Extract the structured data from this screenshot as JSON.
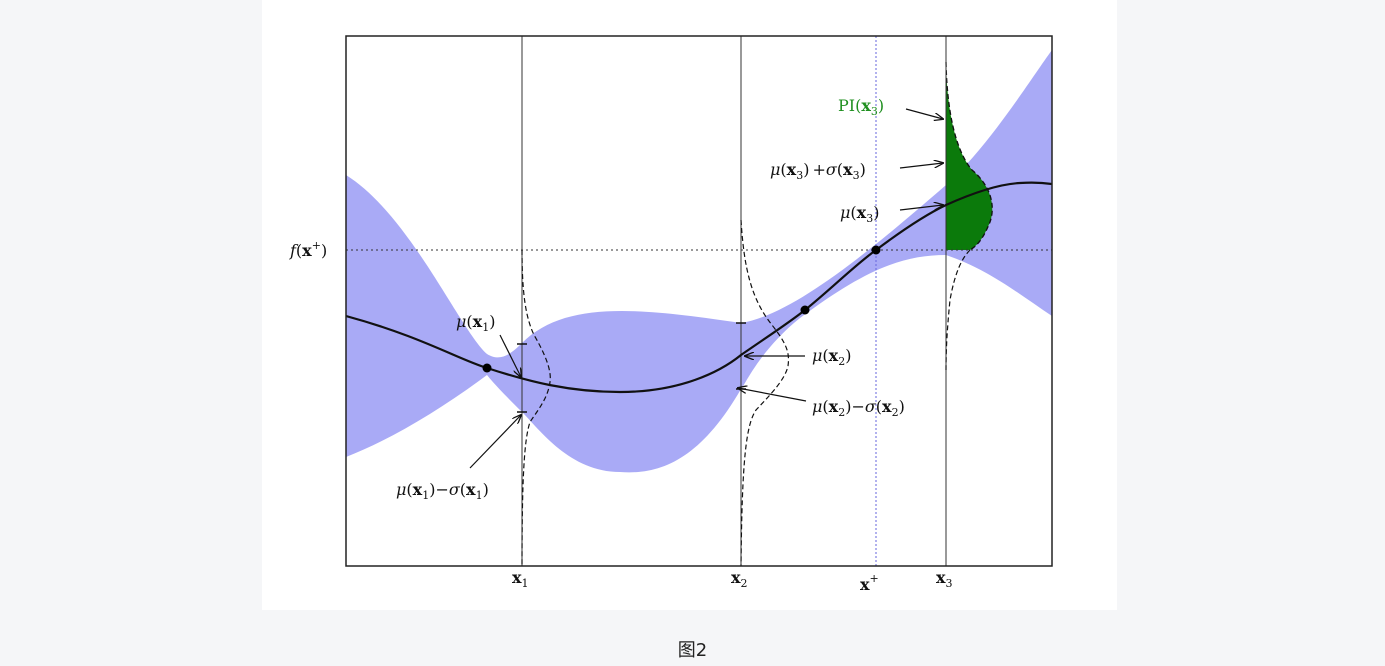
{
  "caption": "图2",
  "colors": {
    "band": "#a9aaf6",
    "pi_fill": "#0b7a0b",
    "pi_label": "#1f8f1f",
    "x_plus_line": "#6666dd"
  },
  "labels": {
    "f_x_plus": {
      "func": "f",
      "arg": "x",
      "sup": "+"
    },
    "mu_x1": {
      "mu": "μ",
      "x": "x",
      "sub": "1"
    },
    "mu_minus_sigma_x1": {
      "mu": "μ",
      "x": "x",
      "sub": "1",
      "op": "−",
      "sigma": "σ"
    },
    "mu_x2": {
      "mu": "μ",
      "x": "x",
      "sub": "2"
    },
    "mu_minus_sigma_x2": {
      "mu": "μ",
      "x": "x",
      "sub": "2",
      "op": "−",
      "sigma": "σ"
    },
    "mu_x3": {
      "mu": "μ",
      "x": "x",
      "sub": "3"
    },
    "mu_plus_sigma_x3": {
      "mu": "μ",
      "x": "x",
      "sub": "3",
      "op": "+",
      "sigma": "σ"
    },
    "pi_x3": {
      "pi": "PI",
      "x": "x",
      "sub": "3"
    }
  },
  "axis": {
    "x1": {
      "x": "x",
      "sub": "1"
    },
    "x2": {
      "x": "x",
      "sub": "2"
    },
    "x_plus": {
      "x": "x",
      "sup": "+"
    },
    "x3": {
      "x": "x",
      "sub": "3"
    }
  },
  "icons": {
    "observation": "filled-circle-marker",
    "annotation": "arrow-icon"
  }
}
